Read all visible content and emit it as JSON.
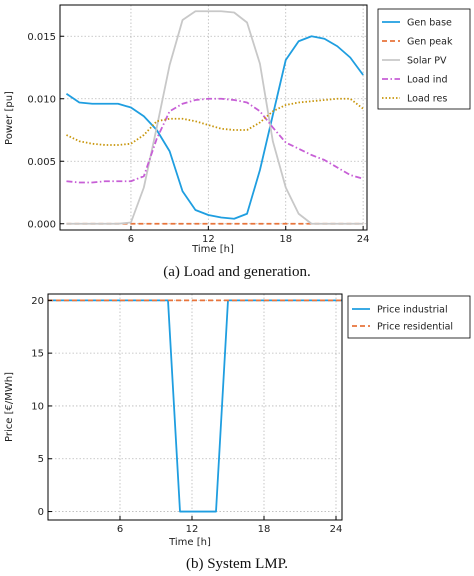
{
  "chart_data": [
    {
      "type": "line",
      "caption": "(a) Load and generation.",
      "xlabel": "Time [h]",
      "ylabel": "Power [pu]",
      "xlim": [
        0.5,
        24.3
      ],
      "ylim": [
        -0.0005,
        0.0175
      ],
      "xticks": [
        6,
        12,
        18,
        24
      ],
      "yticks": [
        0.0,
        0.005,
        0.01,
        0.015
      ],
      "ytick_labels": [
        "0.000",
        "0.005",
        "0.010",
        "0.015"
      ],
      "grid": true,
      "legend_position": "top-right",
      "x": [
        1,
        2,
        3,
        4,
        5,
        6,
        7,
        8,
        9,
        10,
        11,
        12,
        13,
        14,
        15,
        16,
        17,
        18,
        19,
        20,
        21,
        22,
        23,
        24
      ],
      "series": [
        {
          "name": "Gen base",
          "color": "#1f9ee0",
          "dash": "solid",
          "values": [
            0.0104,
            0.0097,
            0.0096,
            0.0096,
            0.0096,
            0.0093,
            0.0086,
            0.0075,
            0.0058,
            0.0026,
            0.0011,
            0.0007,
            0.0005,
            0.0004,
            0.0008,
            0.0043,
            0.0087,
            0.0131,
            0.0146,
            0.015,
            0.0148,
            0.0142,
            0.0133,
            0.0119
          ]
        },
        {
          "name": "Gen peak",
          "color": "#e8743b",
          "dash": "dashed",
          "values": [
            0,
            0,
            0,
            0,
            0,
            0,
            0,
            0,
            0,
            0,
            0,
            0,
            0,
            0,
            0,
            0,
            0,
            0,
            0,
            0,
            0,
            0,
            0,
            0
          ]
        },
        {
          "name": "Solar PV",
          "color": "#c8c8c8",
          "dash": "solid",
          "values": [
            0,
            0,
            0,
            0,
            0,
            0.0001,
            0.0029,
            0.0077,
            0.0127,
            0.0163,
            0.017,
            0.017,
            0.017,
            0.0169,
            0.0161,
            0.0128,
            0.0066,
            0.0029,
            0.0008,
            0,
            0,
            0,
            0,
            0
          ]
        },
        {
          "name": "Load ind",
          "color": "#c75fd6",
          "dash": "dashdot",
          "values": [
            0.0034,
            0.0033,
            0.0033,
            0.0034,
            0.0034,
            0.0034,
            0.0038,
            0.0068,
            0.009,
            0.0096,
            0.0099,
            0.01,
            0.01,
            0.0099,
            0.0097,
            0.009,
            0.0077,
            0.0065,
            0.006,
            0.0055,
            0.0051,
            0.0045,
            0.0039,
            0.0036
          ]
        },
        {
          "name": "Load res",
          "color": "#c8960c",
          "dash": "dotted",
          "values": [
            0.0071,
            0.0066,
            0.0064,
            0.0063,
            0.0063,
            0.0064,
            0.0071,
            0.0082,
            0.0084,
            0.0084,
            0.0082,
            0.0079,
            0.0076,
            0.0075,
            0.0075,
            0.0081,
            0.009,
            0.0095,
            0.0097,
            0.0098,
            0.0099,
            0.01,
            0.01,
            0.0092
          ]
        }
      ]
    },
    {
      "type": "line",
      "caption": "(b) System LMP.",
      "xlabel": "Time [h]",
      "ylabel": "Price [€/MWh]",
      "xlim": [
        0.0,
        24.5
      ],
      "ylim": [
        -0.8,
        20.6
      ],
      "xticks": [
        6,
        12,
        18,
        24
      ],
      "yticks": [
        0,
        5,
        10,
        15,
        20
      ],
      "ytick_labels": [
        "0",
        "5",
        "10",
        "15",
        "20"
      ],
      "grid": true,
      "legend_position": "top-right",
      "series": [
        {
          "name": "Price industrial",
          "color": "#1f9ee0",
          "dash": "solid",
          "x": [
            0,
            10,
            11,
            14,
            15,
            24.5
          ],
          "values": [
            20,
            20,
            0,
            0,
            20,
            20
          ]
        },
        {
          "name": "Price residential",
          "color": "#e8743b",
          "dash": "dashed",
          "x": [
            0,
            24.5
          ],
          "values": [
            20,
            20
          ]
        }
      ]
    }
  ]
}
